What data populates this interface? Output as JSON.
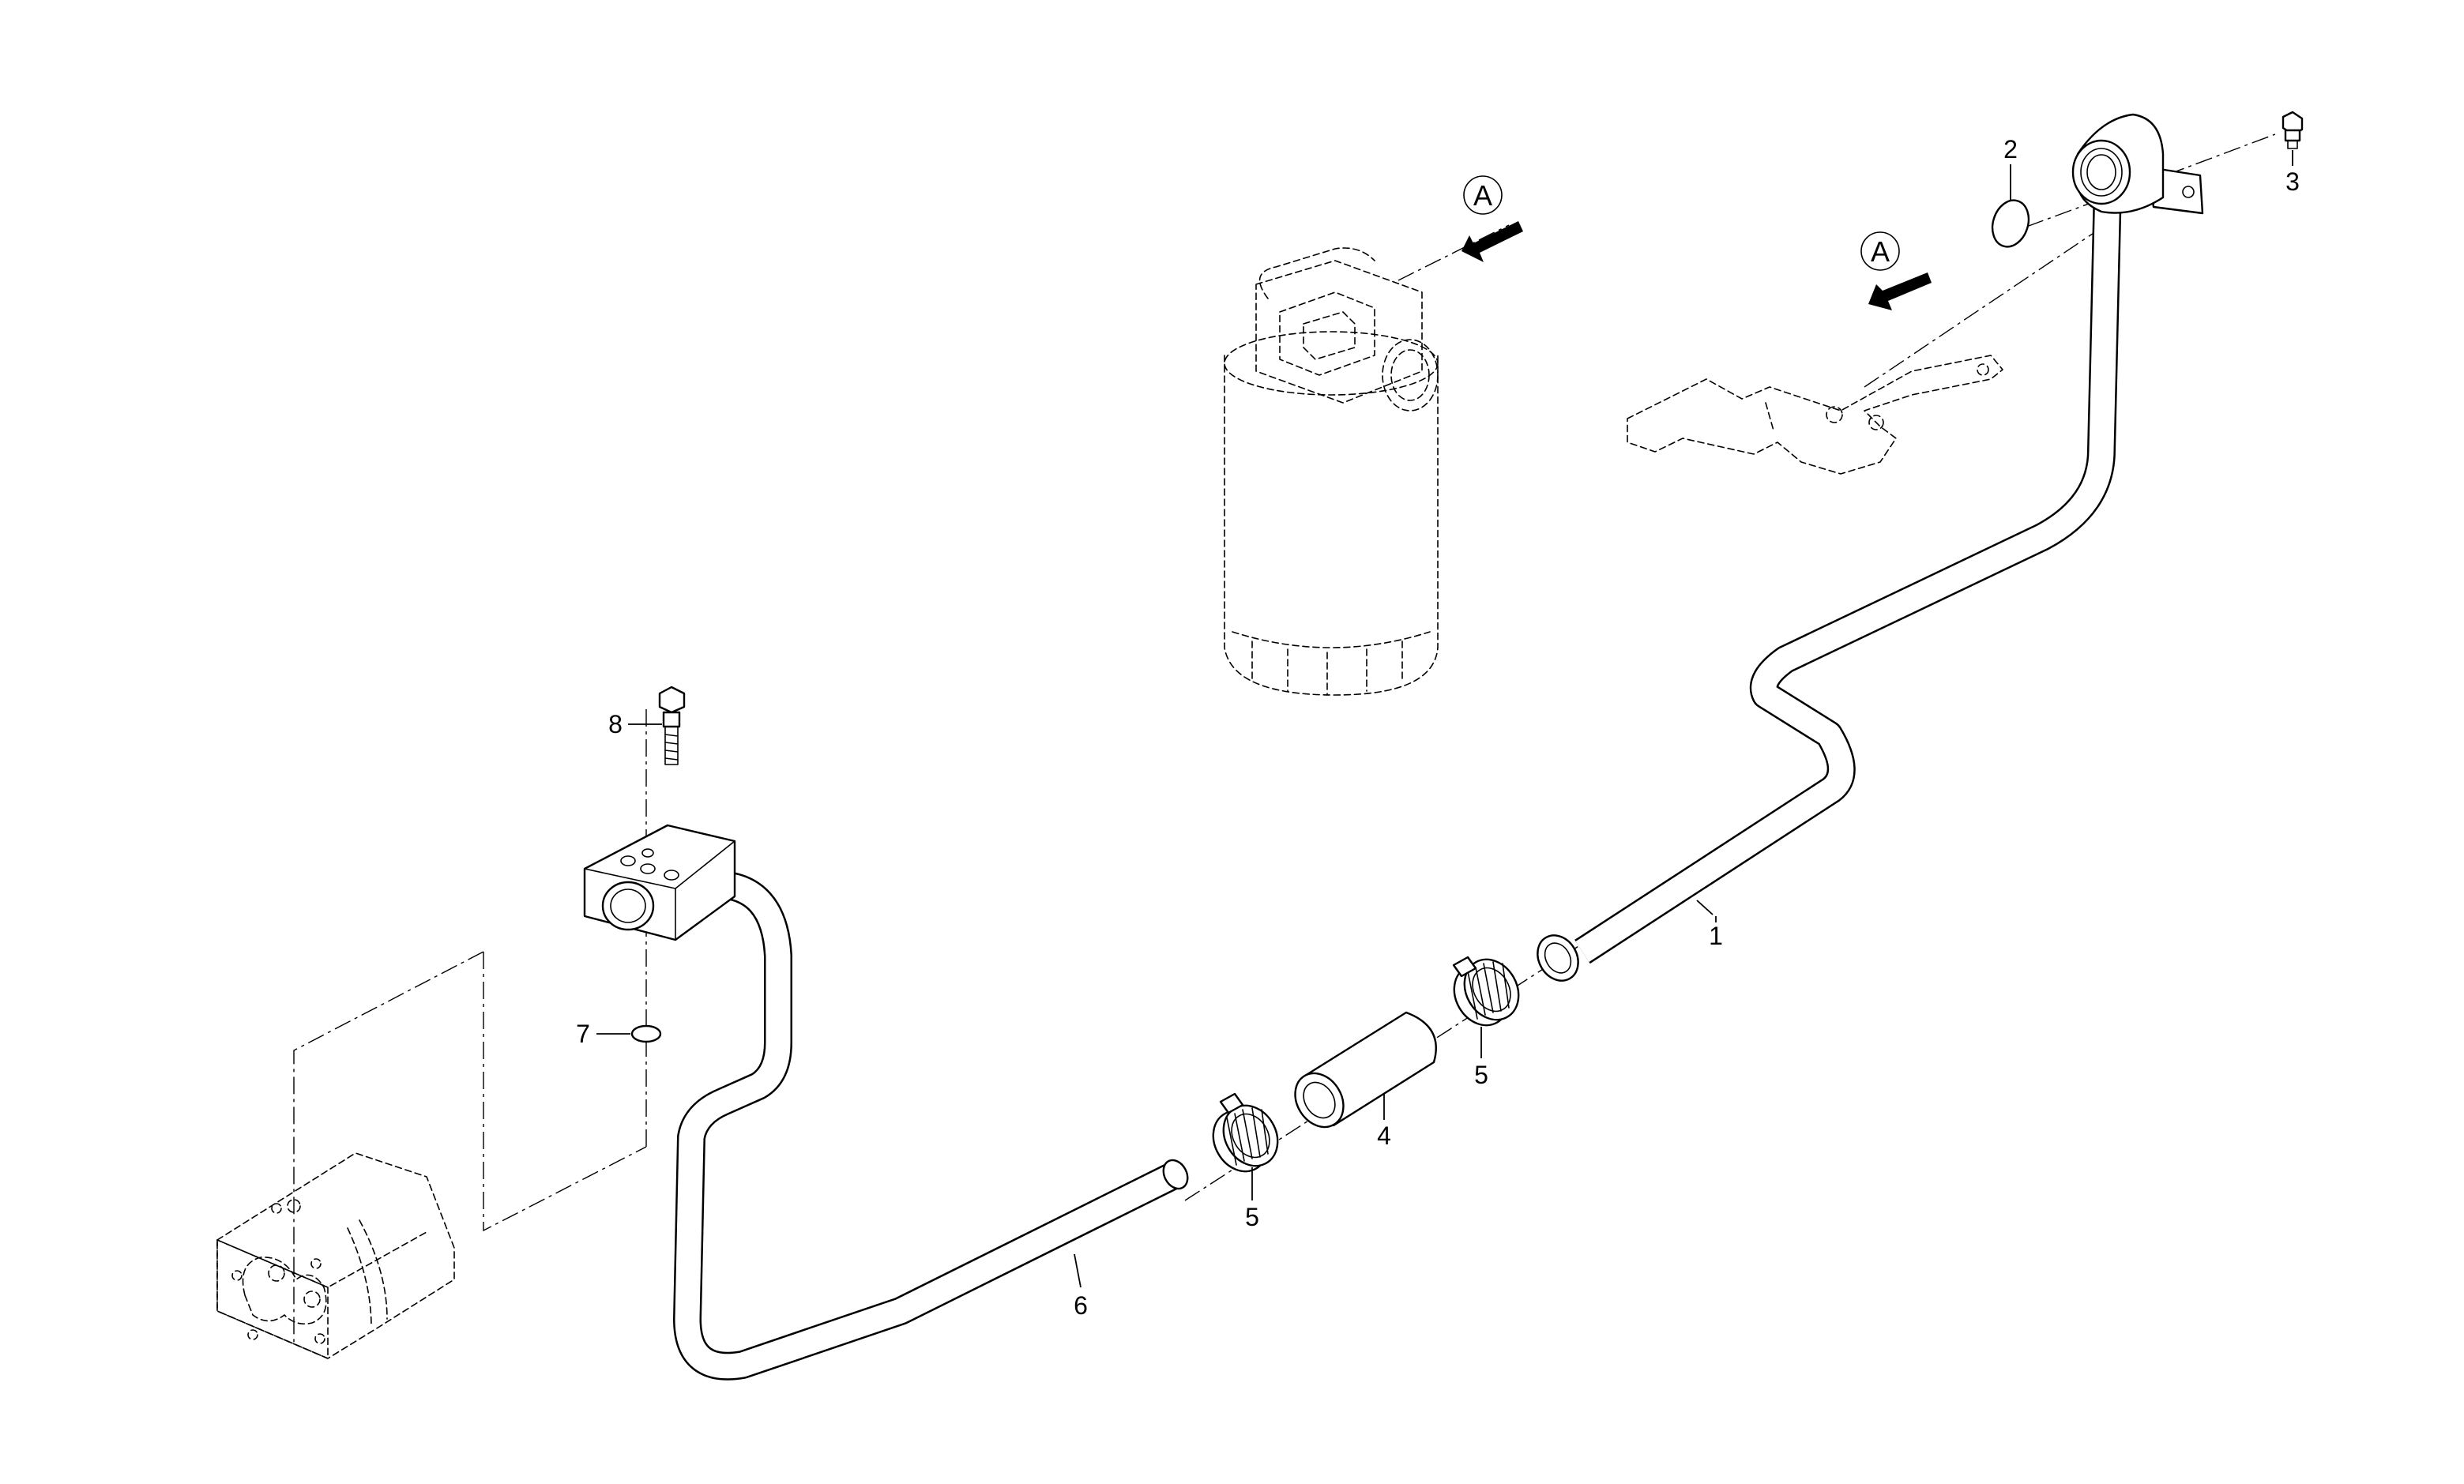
{
  "callouts": [
    {
      "id": "c1",
      "text": "1"
    },
    {
      "id": "c2",
      "text": "2"
    },
    {
      "id": "c3",
      "text": "3"
    },
    {
      "id": "c4",
      "text": "4"
    },
    {
      "id": "c5a",
      "text": "5"
    },
    {
      "id": "c5b",
      "text": "5"
    },
    {
      "id": "c6",
      "text": "6"
    },
    {
      "id": "c7",
      "text": "7"
    },
    {
      "id": "c8",
      "text": "8"
    }
  ],
  "view_markers": [
    {
      "id": "vA1",
      "text": "A"
    },
    {
      "id": "vA2",
      "text": "A"
    }
  ]
}
